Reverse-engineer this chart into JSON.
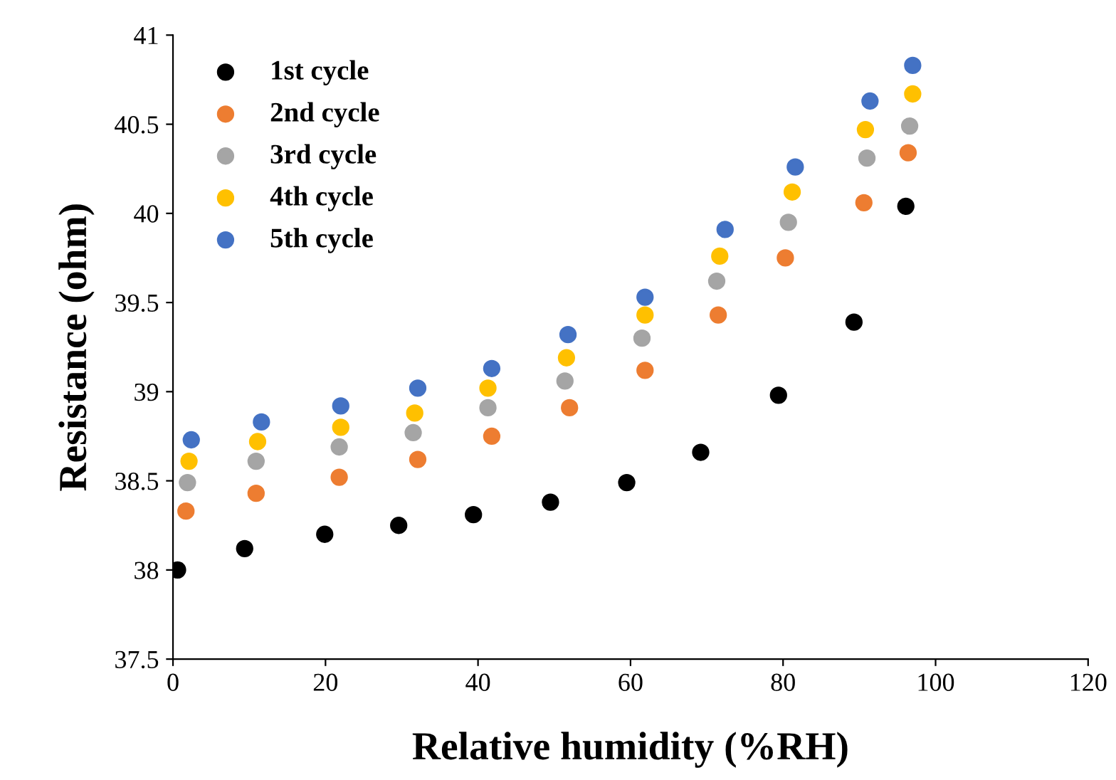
{
  "chart_data": {
    "type": "scatter",
    "xlabel": "Relative humidity (%RH)",
    "ylabel": "Resistance (ohm)",
    "xlim": [
      0,
      120
    ],
    "xticks": [
      0,
      20,
      40,
      60,
      80,
      100,
      120
    ],
    "ylim": [
      37.5,
      41
    ],
    "yticks": [
      37.5,
      38,
      38.5,
      39,
      39.5,
      40,
      40.5,
      41
    ],
    "grid": false,
    "legend": "top left",
    "marker": "circle",
    "series": [
      {
        "name": "1st cycle",
        "color": "#000000",
        "x": [
          0.6,
          9.4,
          19.9,
          29.6,
          39.4,
          49.5,
          59.5,
          69.2,
          79.4,
          89.3,
          96.1
        ],
        "values": [
          38.0,
          38.12,
          38.2,
          38.25,
          38.31,
          38.38,
          38.49,
          38.66,
          38.98,
          39.39,
          40.04
        ]
      },
      {
        "name": "2nd cycle",
        "color": "#ed7d31",
        "x": [
          1.7,
          10.9,
          21.8,
          32.1,
          41.8,
          52.0,
          61.9,
          71.5,
          80.3,
          90.6,
          96.4
        ],
        "values": [
          38.33,
          38.43,
          38.52,
          38.62,
          38.75,
          38.91,
          39.12,
          39.43,
          39.75,
          40.06,
          40.34
        ]
      },
      {
        "name": "3rd cycle",
        "color": "#a5a5a5",
        "x": [
          1.9,
          10.9,
          21.8,
          31.5,
          41.3,
          51.4,
          61.5,
          71.3,
          80.7,
          91.0,
          96.6
        ],
        "values": [
          38.49,
          38.61,
          38.69,
          38.77,
          38.91,
          39.06,
          39.3,
          39.62,
          39.95,
          40.31,
          40.49
        ]
      },
      {
        "name": "4th cycle",
        "color": "#ffc000",
        "x": [
          2.1,
          11.1,
          22.0,
          31.7,
          41.3,
          51.6,
          61.9,
          71.7,
          81.2,
          90.8,
          97.0
        ],
        "values": [
          38.61,
          38.72,
          38.8,
          38.88,
          39.02,
          39.19,
          39.43,
          39.76,
          40.12,
          40.47,
          40.67
        ]
      },
      {
        "name": "5th cycle",
        "color": "#4472c4",
        "x": [
          2.4,
          11.6,
          22.0,
          32.1,
          41.8,
          51.8,
          61.9,
          72.4,
          81.6,
          91.4,
          97.0
        ],
        "values": [
          38.73,
          38.83,
          38.92,
          39.02,
          39.13,
          39.32,
          39.53,
          39.91,
          40.26,
          40.63,
          40.83
        ]
      }
    ]
  }
}
